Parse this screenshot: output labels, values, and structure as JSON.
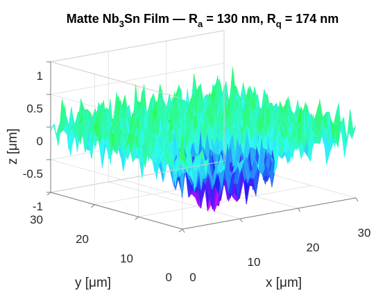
{
  "chart_data": {
    "type": "surface",
    "title": {
      "prefix": "Matte Nb",
      "sub1": "3",
      "mid": "Sn Film — R",
      "sub2": "a",
      "mid2": " = 130 nm, R",
      "sub3": "q",
      "suffix": " = 174 nm"
    },
    "xlabel": "x [μm]",
    "ylabel": "y [μm]",
    "zlabel": "z [μm]",
    "xlim": [
      0,
      30
    ],
    "ylim": [
      0,
      30
    ],
    "zlim": [
      -1,
      1
    ],
    "xticks": [
      "0",
      "10",
      "20",
      "30"
    ],
    "yticks": [
      "0",
      "10",
      "20",
      "30"
    ],
    "zticks": [
      "-1",
      "-0.5",
      "0",
      "0.5",
      "1"
    ],
    "roughness": {
      "Ra_nm": 130,
      "Rq_nm": 174
    },
    "colormap": "hsv",
    "grid": true,
    "box": true
  }
}
